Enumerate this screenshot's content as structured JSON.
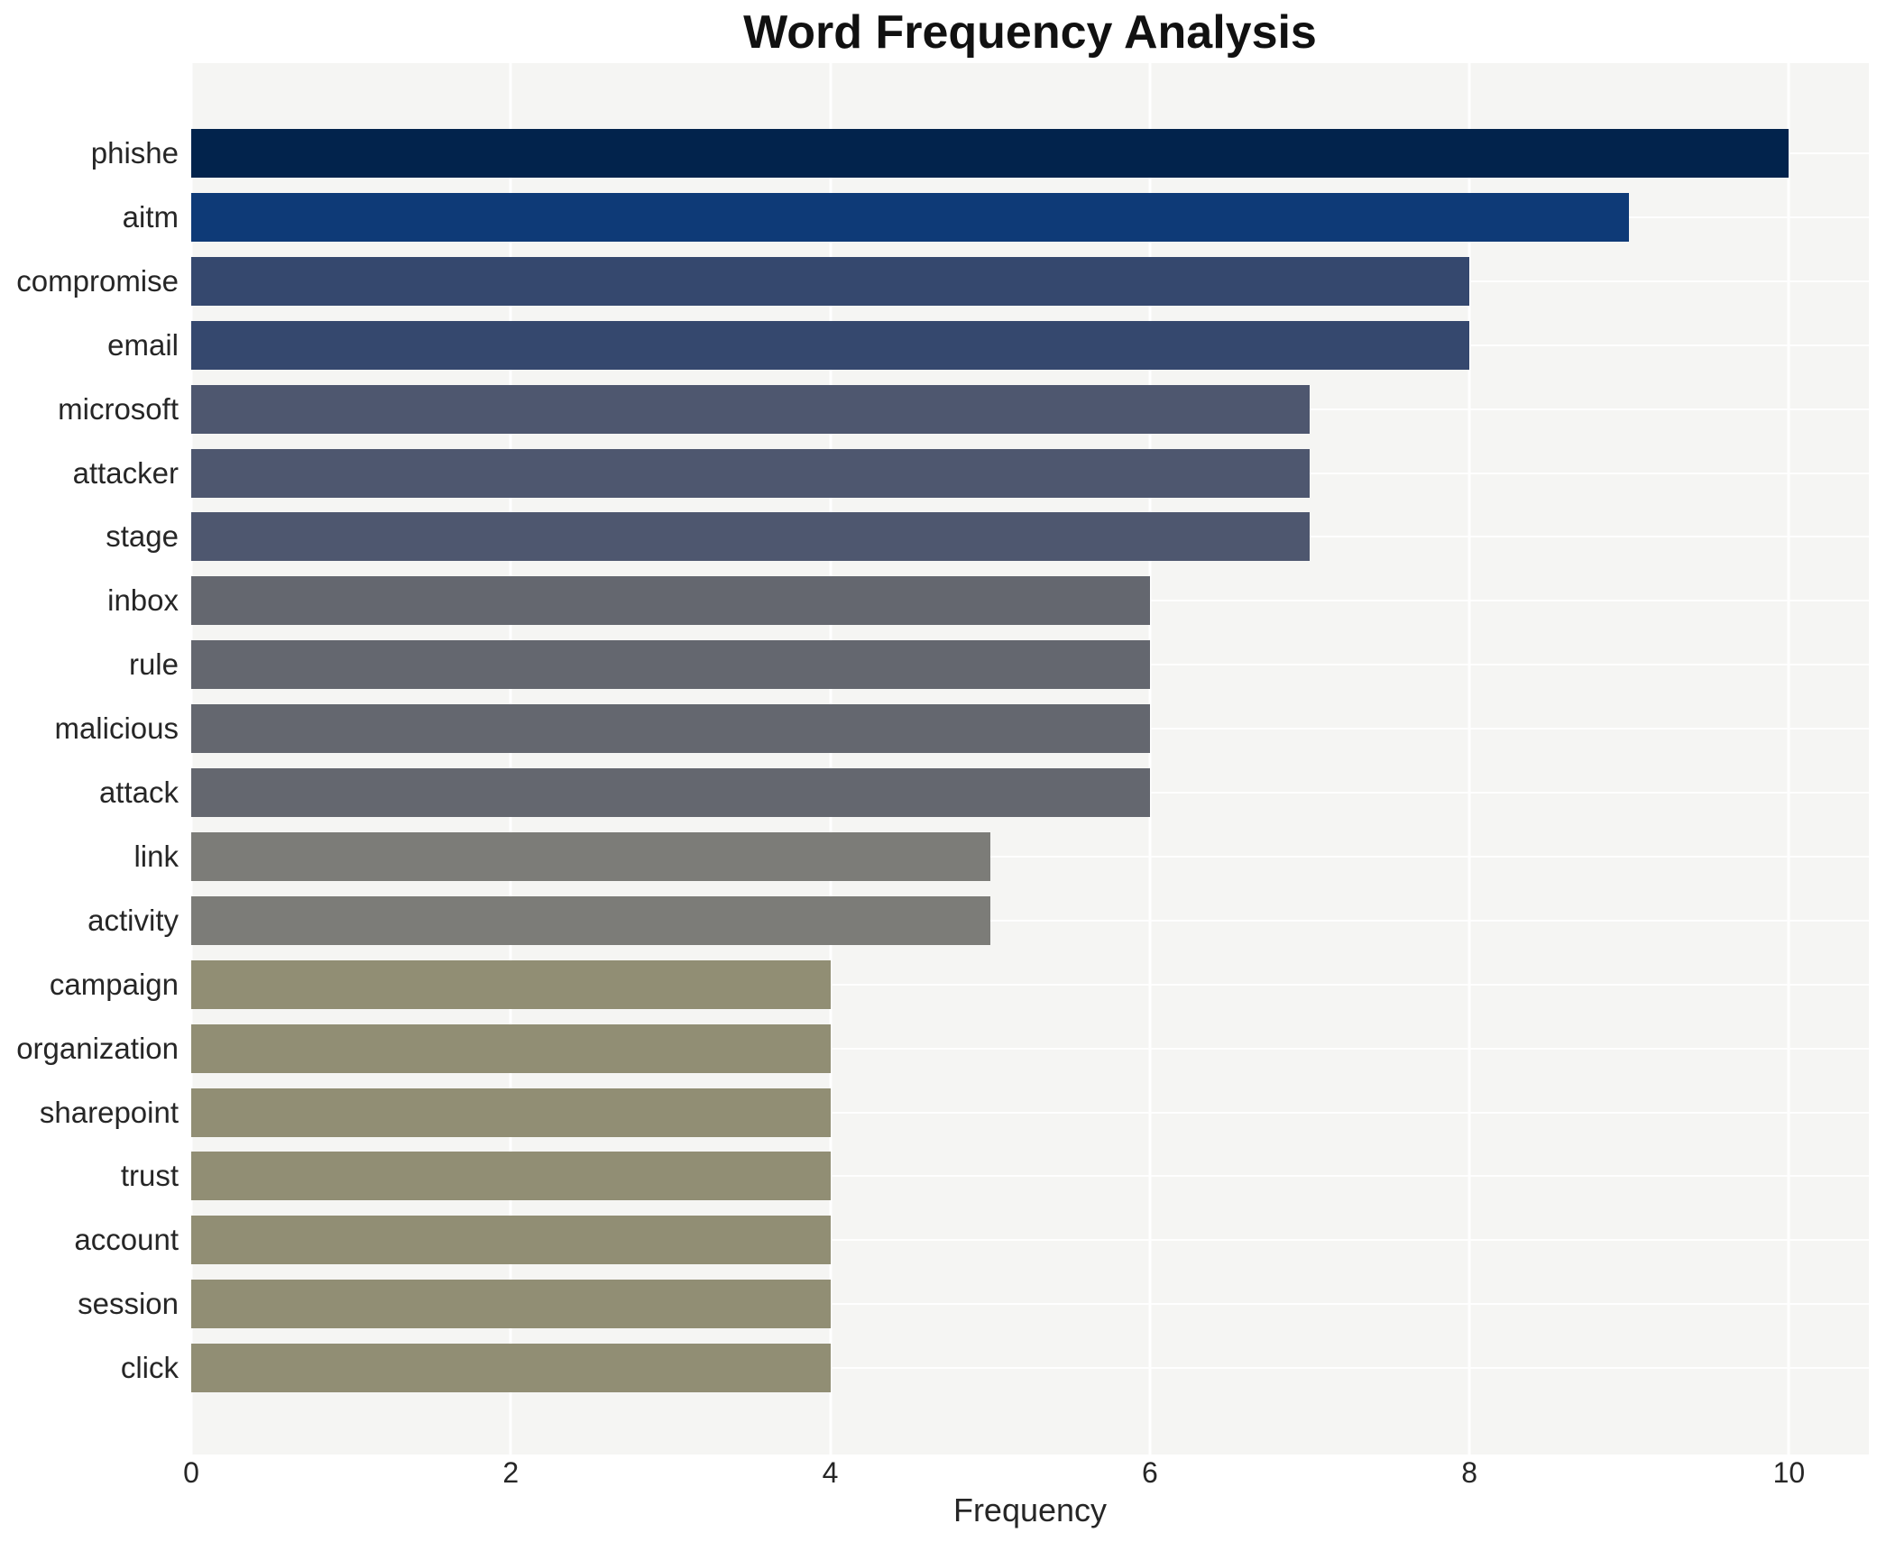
{
  "chart_data": {
    "type": "bar",
    "orientation": "horizontal",
    "title": "Word Frequency Analysis",
    "xlabel": "Frequency",
    "ylabel": "",
    "categories": [
      "phishe",
      "aitm",
      "compromise",
      "email",
      "microsoft",
      "attacker",
      "stage",
      "inbox",
      "rule",
      "malicious",
      "attack",
      "link",
      "activity",
      "campaign",
      "organization",
      "sharepoint",
      "trust",
      "account",
      "session",
      "click"
    ],
    "values": [
      10,
      9,
      8,
      8,
      7,
      7,
      7,
      6,
      6,
      6,
      6,
      5,
      5,
      4,
      4,
      4,
      4,
      4,
      4,
      4
    ],
    "bar_colors": [
      "#02234c",
      "#0e3a77",
      "#35486e",
      "#35486e",
      "#4e576f",
      "#4e576f",
      "#4e576f",
      "#64676f",
      "#64676f",
      "#64676f",
      "#64676f",
      "#7c7c78",
      "#7c7c78",
      "#918e74",
      "#918e74",
      "#918e74",
      "#918e74",
      "#918e74",
      "#918e74",
      "#918e74"
    ],
    "x_ticks": [
      0,
      2,
      4,
      6,
      8,
      10
    ],
    "xlim": [
      0,
      10.5
    ],
    "grid": true,
    "legend": "none",
    "plot_background": "#f5f5f3",
    "gridline_color": "#ffffff",
    "page_background": "#ffffff",
    "title_color": "#111111",
    "label_color": "#262626"
  }
}
